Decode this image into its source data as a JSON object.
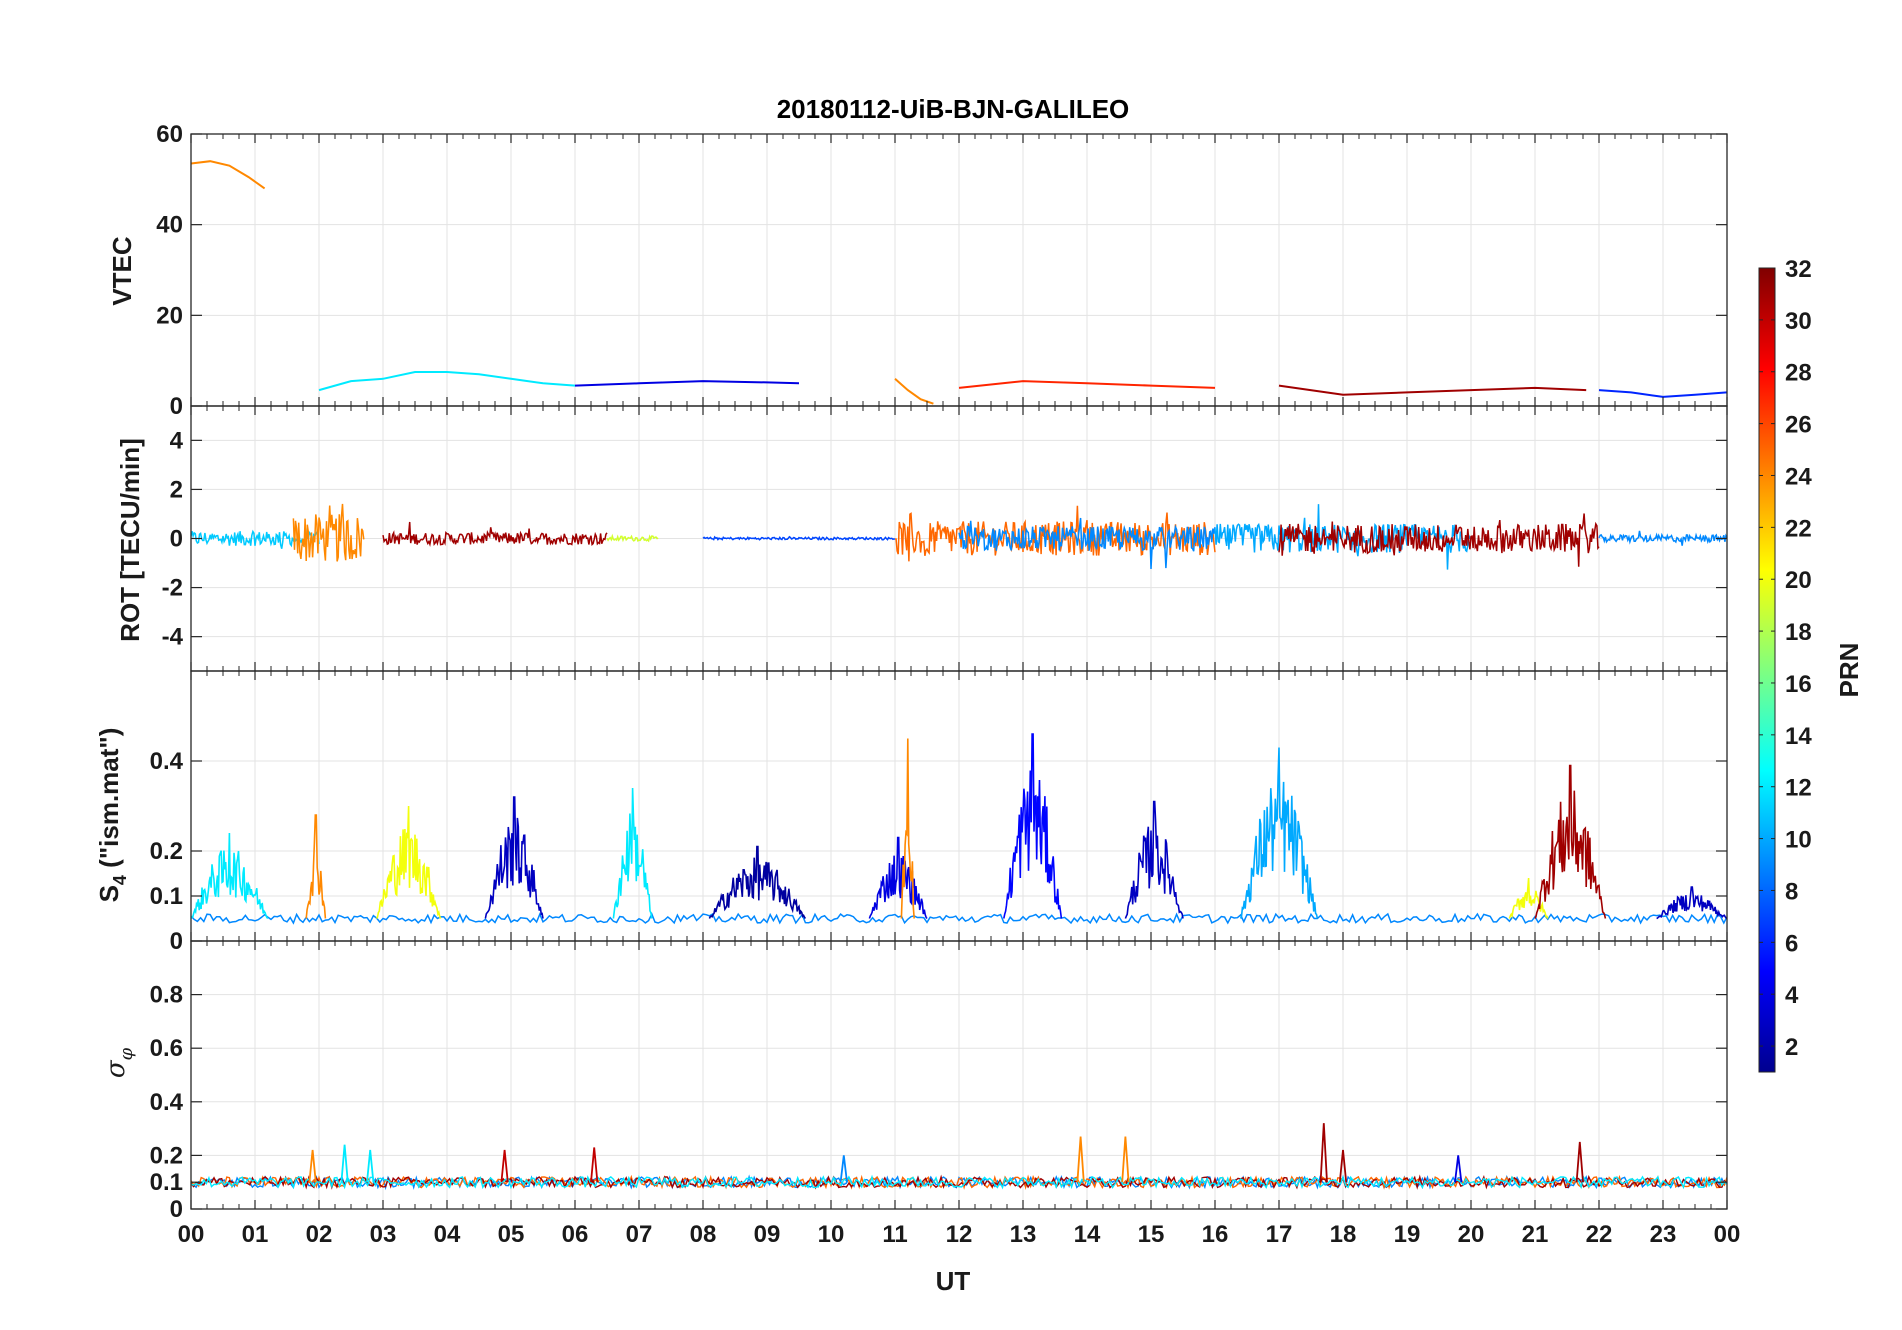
{
  "chart_data": {
    "type": "line",
    "title": "20180112-UiB-BJN-GALILEO",
    "xlabel": "UT",
    "xlim": [
      0,
      24
    ],
    "x_tick_labels": [
      "00",
      "01",
      "02",
      "03",
      "04",
      "05",
      "06",
      "07",
      "08",
      "09",
      "10",
      "11",
      "12",
      "13",
      "14",
      "15",
      "16",
      "17",
      "18",
      "19",
      "20",
      "21",
      "22",
      "23",
      "00"
    ],
    "grid": true,
    "panels": [
      {
        "id": "vtec",
        "ylabel": "VTEC",
        "ylim": [
          0,
          60
        ],
        "y_ticks": [
          0,
          20,
          40,
          60
        ],
        "y_tick_labels": [
          "0",
          "20",
          "40",
          "60"
        ],
        "baseline": 4,
        "series": [
          {
            "prn": 24,
            "x": [
              0.0,
              0.3,
              0.6,
              0.9,
              1.15
            ],
            "y": [
              53.5,
              54.0,
              53.0,
              50.5,
              48.0
            ]
          },
          {
            "prn": 12,
            "x": [
              2.0,
              2.5,
              3.0,
              3.5,
              4.0,
              4.5,
              5.0,
              5.5,
              6.0
            ],
            "y": [
              3.5,
              5.5,
              6.0,
              7.5,
              7.5,
              7.0,
              6.0,
              5.0,
              4.5
            ]
          },
          {
            "prn": 4,
            "x": [
              6.0,
              7.0,
              8.0,
              9.0,
              9.5
            ],
            "y": [
              4.5,
              5.0,
              5.5,
              5.2,
              5.0
            ]
          },
          {
            "prn": 24,
            "x": [
              11.0,
              11.2,
              11.4,
              11.6
            ],
            "y": [
              6.0,
              3.5,
              1.5,
              0.5
            ]
          },
          {
            "prn": 27,
            "x": [
              12.0,
              13.0,
              14.0,
              15.0,
              16.0
            ],
            "y": [
              4.0,
              5.5,
              5.0,
              4.5,
              4.0
            ]
          },
          {
            "prn": 31,
            "x": [
              17.0,
              18.0,
              19.0,
              20.0,
              21.0,
              21.8
            ],
            "y": [
              4.5,
              2.5,
              3.0,
              3.5,
              4.0,
              3.5
            ]
          },
          {
            "prn": 6,
            "x": [
              22.0,
              22.5,
              23.0,
              23.5,
              24.0
            ],
            "y": [
              3.5,
              3.0,
              2.0,
              2.5,
              3.0
            ]
          }
        ]
      },
      {
        "id": "rot",
        "ylabel": "ROT [TECU/min]",
        "ylim": [
          -5.4,
          5.4
        ],
        "y_ticks": [
          -4,
          -2,
          0,
          2,
          4
        ],
        "y_tick_labels": [
          "-4",
          "-2",
          "0",
          "2",
          "4"
        ],
        "baseline": 0,
        "noise_segments": [
          {
            "prn": 11,
            "x0": 0.0,
            "x1": 2.0,
            "amp": 0.3
          },
          {
            "prn": 24,
            "x0": 1.6,
            "x1": 2.7,
            "amp": 1.0
          },
          {
            "prn": 31,
            "x0": 3.0,
            "x1": 6.5,
            "amp": 0.25
          },
          {
            "prn": 19,
            "x0": 6.5,
            "x1": 7.3,
            "amp": 0.1
          },
          {
            "prn": 7,
            "x0": 8.0,
            "x1": 11.0,
            "amp": 0.05
          },
          {
            "prn": 25,
            "x0": 11.0,
            "x1": 16.0,
            "amp": 0.7
          },
          {
            "prn": 9,
            "x0": 12.0,
            "x1": 16.0,
            "amp": 0.5
          },
          {
            "prn": 10,
            "x0": 16.0,
            "x1": 20.0,
            "amp": 0.6
          },
          {
            "prn": 31,
            "x0": 17.0,
            "x1": 22.0,
            "amp": 0.6
          },
          {
            "prn": 9,
            "x0": 22.0,
            "x1": 24.0,
            "amp": 0.15
          }
        ]
      },
      {
        "id": "s4",
        "ylabel": "S4 (\"ism.mat\")",
        "ylabel_main": "S",
        "ylabel_sub": "4",
        "ylabel_rest": " (\"ism.mat\")",
        "ylim": [
          0,
          0.6
        ],
        "y_ticks": [
          0,
          0.1,
          0.2,
          0.4
        ],
        "y_tick_labels": [
          "0",
          "0.1",
          "0.2",
          "0.4"
        ],
        "baseline": 0.05,
        "bursts": [
          {
            "prn": 12,
            "x0": 0.0,
            "x1": 1.2,
            "peak": 0.24
          },
          {
            "prn": 24,
            "x0": 1.8,
            "x1": 2.1,
            "peak": 0.28
          },
          {
            "prn": 20,
            "x0": 2.9,
            "x1": 3.9,
            "peak": 0.3
          },
          {
            "prn": 3,
            "x0": 4.6,
            "x1": 5.5,
            "peak": 0.32
          },
          {
            "prn": 12,
            "x0": 6.6,
            "x1": 7.2,
            "peak": 0.34
          },
          {
            "prn": 2,
            "x0": 8.1,
            "x1": 9.6,
            "peak": 0.21
          },
          {
            "prn": 4,
            "x0": 10.6,
            "x1": 11.5,
            "peak": 0.23
          },
          {
            "prn": 24,
            "x0": 11.1,
            "x1": 11.3,
            "peak": 0.45
          },
          {
            "prn": 5,
            "x0": 12.7,
            "x1": 13.6,
            "peak": 0.46
          },
          {
            "prn": 3,
            "x0": 14.6,
            "x1": 15.5,
            "peak": 0.31
          },
          {
            "prn": 10,
            "x0": 16.4,
            "x1": 17.6,
            "peak": 0.43
          },
          {
            "prn": 20,
            "x0": 20.6,
            "x1": 21.2,
            "peak": 0.14
          },
          {
            "prn": 31,
            "x0": 21.0,
            "x1": 22.1,
            "peak": 0.39
          },
          {
            "prn": 3,
            "x0": 22.9,
            "x1": 24.0,
            "peak": 0.12
          }
        ]
      },
      {
        "id": "sigma-phi",
        "ylabel": "σφ",
        "ylabel_main": "σ",
        "ylabel_sub": "φ",
        "ylim": [
          0,
          1.0
        ],
        "y_ticks": [
          0,
          0.1,
          0.2,
          0.4,
          0.6,
          0.8
        ],
        "y_tick_labels": [
          "0",
          "0.1",
          "0.2",
          "0.4",
          "0.6",
          "0.8"
        ],
        "baseline": 0.1,
        "spikes": [
          {
            "prn": 24,
            "x": 1.9,
            "y": 0.22
          },
          {
            "prn": 12,
            "x": 2.4,
            "y": 0.24
          },
          {
            "prn": 12,
            "x": 2.8,
            "y": 0.22
          },
          {
            "prn": 30,
            "x": 4.9,
            "y": 0.22
          },
          {
            "prn": 30,
            "x": 6.3,
            "y": 0.23
          },
          {
            "prn": 9,
            "x": 10.2,
            "y": 0.2
          },
          {
            "prn": 24,
            "x": 13.9,
            "y": 0.27
          },
          {
            "prn": 24,
            "x": 14.6,
            "y": 0.27
          },
          {
            "prn": 31,
            "x": 17.7,
            "y": 0.32
          },
          {
            "prn": 31,
            "x": 18.0,
            "y": 0.22
          },
          {
            "prn": 4,
            "x": 19.8,
            "y": 0.2
          },
          {
            "prn": 31,
            "x": 21.7,
            "y": 0.25
          }
        ]
      }
    ],
    "colorbar": {
      "label": "PRN",
      "colormap": "jet",
      "range": [
        1,
        32
      ],
      "tick_labels": [
        "2",
        "4",
        "6",
        "8",
        "10",
        "12",
        "14",
        "16",
        "18",
        "20",
        "22",
        "24",
        "26",
        "28",
        "30",
        "32"
      ]
    }
  }
}
